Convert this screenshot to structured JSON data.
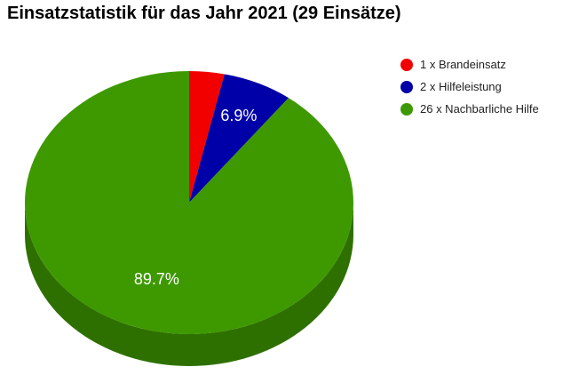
{
  "title": "Einsatzstatistik für das Jahr 2021 (29 Einsätze)",
  "chart_data": {
    "type": "pie",
    "title": "Einsatzstatistik für das Jahr 2021 (29 Einsätze)",
    "legend_position": "right",
    "three_d": true,
    "slices": [
      {
        "label": "1 x Brandeinsatz",
        "value": 1,
        "percent_label": "",
        "color": "#f20000",
        "side_color": "#b20000"
      },
      {
        "label": "2 x Hilfeleistung",
        "value": 2,
        "percent_label": "6.9%",
        "color": "#0000a8",
        "side_color": "#000078"
      },
      {
        "label": "26 x Nachbarliche Hilfe",
        "value": 26,
        "percent_label": "89.7%",
        "color": "#3e9900",
        "side_color": "#2e7000"
      }
    ]
  }
}
